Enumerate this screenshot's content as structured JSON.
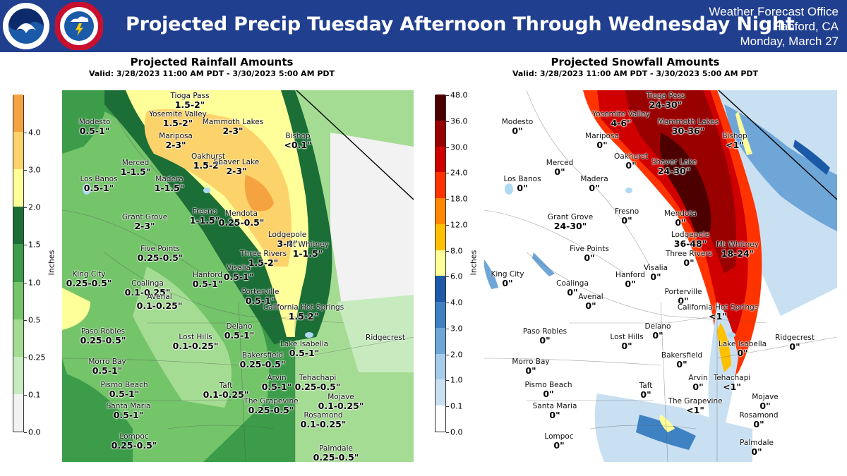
{
  "header": {
    "title": "Projected Precip Tuesday Afternoon Through Wednesday Night",
    "office_line1": "Weather Forecast Office",
    "office_line2": "Hanford, CA",
    "office_line3": "Monday, March 27",
    "logo_noaa": "noaa-logo",
    "logo_nws": "national-weather-service-logo",
    "bg_color": "#213f8f"
  },
  "rain": {
    "title": "Projected Rainfall Amounts",
    "valid": "Valid: 3/28/2023 11:00 AM PDT - 3/30/2023 5:00 AM PDT",
    "colorbar_label": "Inches",
    "ticks": [
      "0.0",
      "0.1",
      "0.25",
      "0.5",
      "1.0",
      "1.5",
      "2.0",
      "3.0",
      "4.0"
    ],
    "colors": [
      "#f2f2f2",
      "#c7ebbf",
      "#a4dc93",
      "#74c46a",
      "#3c9c49",
      "#1b6e35",
      "#ffff99",
      "#fcd36b",
      "#f5a340"
    ],
    "places": [
      {
        "name": "Tioga Pass",
        "value": "1.5-2\""
      },
      {
        "name": "Modesto",
        "value": "0.5-1\""
      },
      {
        "name": "Yosemite Valley",
        "value": "1.5-2\""
      },
      {
        "name": "Mammoth Lakes",
        "value": "2-3\""
      },
      {
        "name": "Mariposa",
        "value": "2-3\""
      },
      {
        "name": "Bishop",
        "value": "<0.1\""
      },
      {
        "name": "Merced",
        "value": "1-1.5\""
      },
      {
        "name": "Oakhurst",
        "value": "1.5-2\""
      },
      {
        "name": "Shaver Lake",
        "value": "2-3\""
      },
      {
        "name": "Los Banos",
        "value": "0.5-1\""
      },
      {
        "name": "Madera",
        "value": "1-1.5\""
      },
      {
        "name": "Fresno",
        "value": "1-1.5\""
      },
      {
        "name": "Grant Grove",
        "value": "2-3\""
      },
      {
        "name": "Mendota",
        "value": "0.25-0.5\""
      },
      {
        "name": "Lodgepole",
        "value": "3-4\""
      },
      {
        "name": "Mt Whitney",
        "value": "1-1.5\""
      },
      {
        "name": "Five Points",
        "value": "0.25-0.5\""
      },
      {
        "name": "Three Rivers",
        "value": "1.5-2\""
      },
      {
        "name": "Visalia",
        "value": "0.5-1\""
      },
      {
        "name": "King City",
        "value": "0.25-0.5\""
      },
      {
        "name": "Hanford",
        "value": "0.5-1\""
      },
      {
        "name": "Coalinga",
        "value": "0.1-0.25\""
      },
      {
        "name": "Porterville",
        "value": "0.5-1\""
      },
      {
        "name": "Avenal",
        "value": "0.1-0.25\""
      },
      {
        "name": "California Hot Springs",
        "value": "1.5-2\""
      },
      {
        "name": "Delano",
        "value": "0.5-1\""
      },
      {
        "name": "Paso Robles",
        "value": "0.25-0.5\""
      },
      {
        "name": "Lost Hills",
        "value": "0.1-0.25\""
      },
      {
        "name": "Lake Isabella",
        "value": "0.5-1\""
      },
      {
        "name": "Ridgecrest",
        "value": ""
      },
      {
        "name": "Bakersfield",
        "value": "0.25-0.5\""
      },
      {
        "name": "Morro Bay",
        "value": "0.5-1\""
      },
      {
        "name": "Arvin",
        "value": "0.5-1\""
      },
      {
        "name": "Tehachapi",
        "value": "0.25-0.5\""
      },
      {
        "name": "Pismo Beach",
        "value": "0.5-1\""
      },
      {
        "name": "Taft",
        "value": "0.1-0.25\""
      },
      {
        "name": "Mojave",
        "value": "0.1-0.25\""
      },
      {
        "name": "The Grapevine",
        "value": "0.25-0.5\""
      },
      {
        "name": "Santa Maria",
        "value": "0.5-1\""
      },
      {
        "name": "Rosamond",
        "value": "0.1-0.25\""
      },
      {
        "name": "Lompoc",
        "value": "0.25-0.5\""
      },
      {
        "name": "Palmdale",
        "value": "0.25-0.5\""
      }
    ]
  },
  "snow": {
    "title": "Projected Snowfall Amounts",
    "valid": "Valid: 3/28/2023 11:00 AM PDT - 3/30/2023 5:00 AM PDT",
    "colorbar_label": "Inches",
    "ticks": [
      "0.0",
      "0.1",
      "1.0",
      "2.0",
      "3.0",
      "4.0",
      "6.0",
      "8.0",
      "12.0",
      "18.0",
      "24.0",
      "30.0",
      "36.0",
      "48.0"
    ],
    "colors": [
      "#ffffff",
      "#c9e0f2",
      "#a7cbea",
      "#6ea6d8",
      "#3f82c3",
      "#1c5aa8",
      "#ffff99",
      "#ffc000",
      "#ff8800",
      "#ff3300",
      "#d00000",
      "#990000",
      "#4d0000"
    ],
    "places": [
      {
        "name": "Tioga Pass",
        "value": "24-30\""
      },
      {
        "name": "Modesto",
        "value": "0\""
      },
      {
        "name": "Yosemite Valley",
        "value": "4-6\""
      },
      {
        "name": "Mammoth Lakes",
        "value": "30-36\""
      },
      {
        "name": "Mariposa",
        "value": "0\""
      },
      {
        "name": "Bishop",
        "value": "<1\""
      },
      {
        "name": "Merced",
        "value": "0\""
      },
      {
        "name": "Oakhurst",
        "value": "0\""
      },
      {
        "name": "Shaver Lake",
        "value": "24-30\""
      },
      {
        "name": "Los Banos",
        "value": "0\""
      },
      {
        "name": "Madera",
        "value": "0\""
      },
      {
        "name": "Fresno",
        "value": "0\""
      },
      {
        "name": "Grant Grove",
        "value": "24-30\""
      },
      {
        "name": "Mendota",
        "value": "0\""
      },
      {
        "name": "Lodgepole",
        "value": "36-48\""
      },
      {
        "name": "Mt Whitney",
        "value": "18-24\""
      },
      {
        "name": "Five Points",
        "value": "0\""
      },
      {
        "name": "Three Rivers",
        "value": "0\""
      },
      {
        "name": "Visalia",
        "value": "0\""
      },
      {
        "name": "King City",
        "value": "0\""
      },
      {
        "name": "Hanford",
        "value": "0\""
      },
      {
        "name": "Coalinga",
        "value": "0\""
      },
      {
        "name": "Porterville",
        "value": "0\""
      },
      {
        "name": "Avenal",
        "value": "0\""
      },
      {
        "name": "California Hot Springs",
        "value": "<1\""
      },
      {
        "name": "Delano",
        "value": "0\""
      },
      {
        "name": "Paso Robles",
        "value": "0\""
      },
      {
        "name": "Lost Hills",
        "value": "0\""
      },
      {
        "name": "Lake Isabella",
        "value": "0\""
      },
      {
        "name": "Ridgecrest",
        "value": "0\""
      },
      {
        "name": "Bakersfield",
        "value": "0\""
      },
      {
        "name": "Morro Bay",
        "value": "0\""
      },
      {
        "name": "Arvin",
        "value": "0\""
      },
      {
        "name": "Tehachapi",
        "value": "<1\""
      },
      {
        "name": "Pismo Beach",
        "value": "0\""
      },
      {
        "name": "Taft",
        "value": "0\""
      },
      {
        "name": "Mojave",
        "value": "0\""
      },
      {
        "name": "The Grapevine",
        "value": "<1\""
      },
      {
        "name": "Santa Maria",
        "value": "0\""
      },
      {
        "name": "Rosamond",
        "value": "0\""
      },
      {
        "name": "Lompoc",
        "value": "0\""
      },
      {
        "name": "Palmdale",
        "value": "0\""
      }
    ]
  }
}
